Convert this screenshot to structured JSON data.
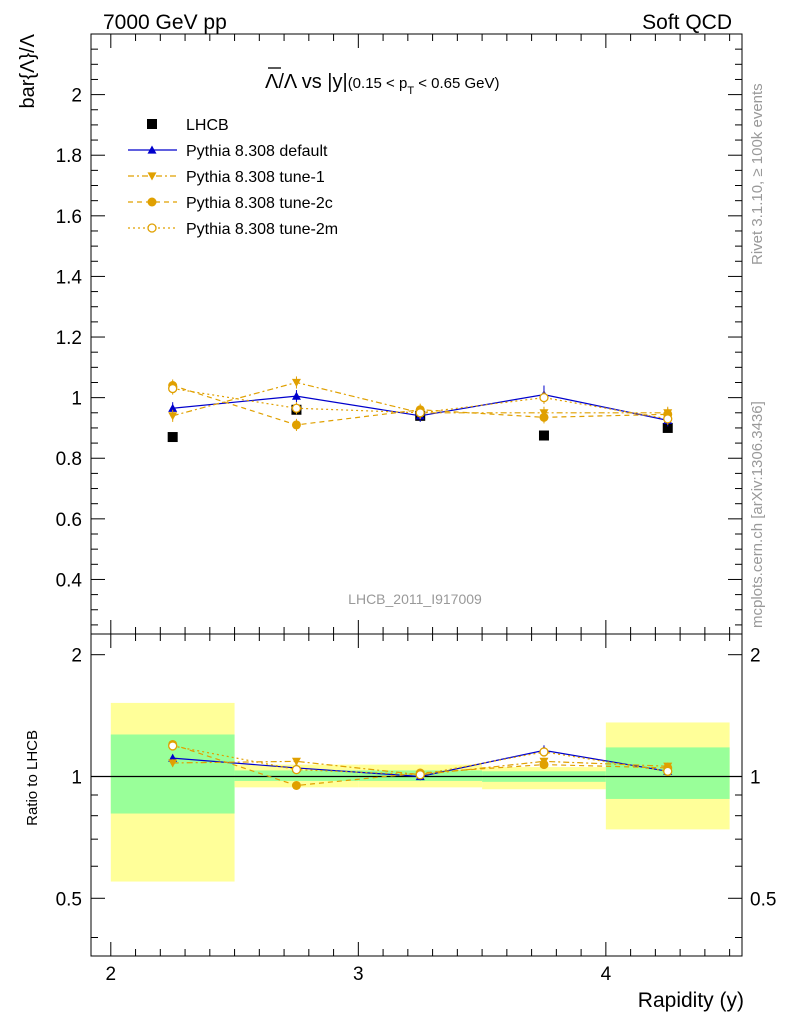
{
  "header": {
    "left": "7000 GeV pp",
    "right": "Soft QCD"
  },
  "side_text": {
    "rivet": "Rivet 3.1.10, ≥ 100k events",
    "mcplots": "mcplots.cern.ch [arXiv:1306.3436]"
  },
  "chart_data": {
    "type": "line",
    "title": "Λ̅/Λ vs |y|(0.15 < p_T < 0.65 GeV)",
    "title_main": "Λ/Λ vs |y|",
    "title_cut_pre": "(0.15 < p",
    "title_cut_sub": "T",
    "title_cut_post": " < 0.65 GeV)",
    "watermark": "LHCB_2011_I917009",
    "xlabel": "Rapidity (y)",
    "ylabel": "bar{Λ}/Λ",
    "ratio_ylabel": "Ratio to LHCB",
    "xlim": [
      1.92,
      4.55
    ],
    "ylim": [
      0.22,
      2.2
    ],
    "ratio_ylim": [
      0.36,
      2.25
    ],
    "ratio_log_scale": true,
    "x_ticks": [
      "2",
      "3",
      "4"
    ],
    "y_ticks": [
      "0.4",
      "0.6",
      "0.8",
      "1",
      "1.2",
      "1.4",
      "1.6",
      "1.8",
      "2"
    ],
    "ratio_ticks": [
      "0.5",
      "1",
      "2"
    ],
    "x": [
      2.25,
      2.75,
      3.25,
      3.75,
      4.25
    ],
    "bins": [
      [
        2.0,
        2.5
      ],
      [
        2.5,
        3.0
      ],
      [
        3.0,
        3.5
      ],
      [
        3.5,
        4.0
      ],
      [
        4.0,
        4.5
      ]
    ],
    "legend_position": "top-left",
    "data": {
      "name": "LHCB",
      "values": [
        0.87,
        0.96,
        0.94,
        0.875,
        0.9
      ],
      "band_1sigma": [
        [
          0.81,
          1.27
        ],
        [
          0.975,
          1.035
        ],
        [
          0.975,
          1.035
        ],
        [
          0.97,
          1.03
        ],
        [
          0.88,
          1.18
        ]
      ],
      "band_2sigma": [
        [
          0.55,
          1.52
        ],
        [
          0.94,
          1.07
        ],
        [
          0.94,
          1.07
        ],
        [
          0.93,
          1.055
        ],
        [
          0.74,
          1.36
        ]
      ]
    },
    "series": [
      {
        "name": "Pythia 8.308 default",
        "color": "#0000cc",
        "marker": "triangle-up",
        "dash": "",
        "values": [
          0.965,
          1.005,
          0.94,
          1.01,
          0.925
        ],
        "errors": [
          0.02,
          0.02,
          0.02,
          0.03,
          0.02
        ],
        "ratio": [
          1.11,
          1.05,
          1.0,
          1.16,
          1.03
        ]
      },
      {
        "name": "Pythia 8.308 tune-1",
        "color": "#e0a000",
        "marker": "triangle-down",
        "dash": "6,3,2,3",
        "values": [
          0.94,
          1.05,
          0.95,
          0.95,
          0.95
        ],
        "errors": [
          0.02,
          0.02,
          0.02,
          0.02,
          0.02
        ],
        "ratio": [
          1.08,
          1.09,
          1.01,
          1.09,
          1.06
        ]
      },
      {
        "name": "Pythia 8.308 tune-2c",
        "color": "#e0a000",
        "marker": "circle",
        "dash": "5,4",
        "values": [
          1.04,
          0.91,
          0.96,
          0.935,
          0.945
        ],
        "errors": [
          0.02,
          0.02,
          0.02,
          0.02,
          0.02
        ],
        "ratio": [
          1.2,
          0.95,
          1.02,
          1.07,
          1.05
        ]
      },
      {
        "name": "Pythia 8.308 tune-2m",
        "color": "#e0a000",
        "marker": "open-circle",
        "dash": "2,3",
        "values": [
          1.03,
          0.965,
          0.95,
          1.0,
          0.93
        ],
        "errors": [
          0.02,
          0.02,
          0.02,
          0.02,
          0.02
        ],
        "ratio": [
          1.19,
          1.04,
          1.01,
          1.15,
          1.03
        ]
      }
    ]
  }
}
